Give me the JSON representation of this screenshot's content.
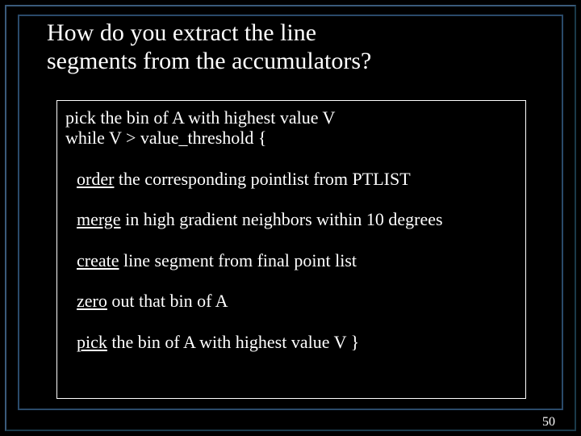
{
  "slide": {
    "background_color": "#000000",
    "frame_color": "#2a4a6a",
    "text_color": "#ffffff",
    "title_fontsize": 30,
    "body_fontsize": 22,
    "page_number": "50",
    "title_line1": "How do you extract the line",
    "title_line2": "segments from the accumulators?",
    "algo": {
      "line1": "pick the bin of A with highest value V",
      "line2": "while V > value_threshold {",
      "step1_kw": "order",
      "step1_rest": " the corresponding pointlist from PTLIST",
      "step2_kw": "merge",
      "step2_rest": " in high gradient neighbors within 10 degrees",
      "step3_kw": "create",
      "step3_rest": " line segment from final point list",
      "step4_kw": "zero",
      "step4_rest": " out that bin of A",
      "step5_kw": "pick",
      "step5_rest": " the bin of A with highest value V }"
    }
  }
}
